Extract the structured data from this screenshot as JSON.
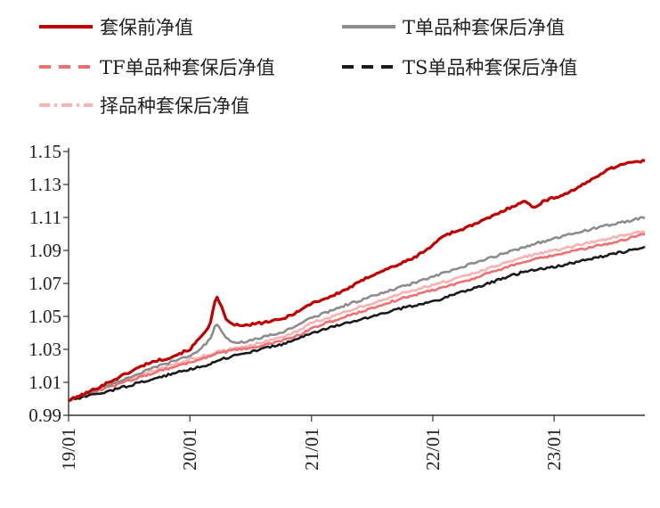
{
  "chart_data": {
    "type": "line",
    "title": "",
    "xlabel": "",
    "ylabel": "",
    "x_ticks": [
      "19/01",
      "20/01",
      "21/01",
      "22/01",
      "23/01"
    ],
    "y_ticks": [
      "0.99",
      "1.01",
      "1.03",
      "1.05",
      "1.07",
      "1.09",
      "1.11",
      "1.13",
      "1.15"
    ],
    "ylim": [
      0.99,
      1.15
    ],
    "xlim": [
      "2019-01",
      "2023-10"
    ],
    "grid": false,
    "legend_position": "top",
    "series": [
      {
        "name": "套保前净值",
        "color": "#c00000",
        "dash": "solid",
        "points": [
          [
            "2019-01",
            0.999
          ],
          [
            "2019-03",
            1.004
          ],
          [
            "2019-05",
            1.01
          ],
          [
            "2019-07",
            1.016
          ],
          [
            "2019-09",
            1.022
          ],
          [
            "2019-11",
            1.025
          ],
          [
            "2020-01",
            1.03
          ],
          [
            "2020-02",
            1.037
          ],
          [
            "2020-03",
            1.045
          ],
          [
            "2020-03-20",
            1.062
          ],
          [
            "2020-04",
            1.058
          ],
          [
            "2020-04-20",
            1.047
          ],
          [
            "2020-06",
            1.044
          ],
          [
            "2020-08",
            1.046
          ],
          [
            "2020-10",
            1.048
          ],
          [
            "2020-12",
            1.054
          ],
          [
            "2021-01",
            1.058
          ],
          [
            "2021-03",
            1.062
          ],
          [
            "2021-05",
            1.068
          ],
          [
            "2021-07",
            1.075
          ],
          [
            "2021-09",
            1.08
          ],
          [
            "2021-11",
            1.085
          ],
          [
            "2022-01",
            1.093
          ],
          [
            "2022-02",
            1.099
          ],
          [
            "2022-04",
            1.103
          ],
          [
            "2022-06",
            1.108
          ],
          [
            "2022-08",
            1.114
          ],
          [
            "2022-10",
            1.12
          ],
          [
            "2022-11",
            1.116
          ],
          [
            "2022-12",
            1.12
          ],
          [
            "2023-02",
            1.124
          ],
          [
            "2023-04",
            1.13
          ],
          [
            "2023-06",
            1.138
          ],
          [
            "2023-08",
            1.143
          ],
          [
            "2023-10",
            1.144
          ]
        ]
      },
      {
        "name": "T单品种套保后净值",
        "color": "#8c8c8c",
        "dash": "solid",
        "points": [
          [
            "2019-01",
            0.999
          ],
          [
            "2019-04",
            1.006
          ],
          [
            "2019-07",
            1.013
          ],
          [
            "2019-10",
            1.02
          ],
          [
            "2020-01",
            1.026
          ],
          [
            "2020-02",
            1.03
          ],
          [
            "2020-03",
            1.036
          ],
          [
            "2020-03-20",
            1.046
          ],
          [
            "2020-04",
            1.042
          ],
          [
            "2020-04-20",
            1.036
          ],
          [
            "2020-06",
            1.034
          ],
          [
            "2020-08",
            1.037
          ],
          [
            "2020-10",
            1.04
          ],
          [
            "2020-12",
            1.046
          ],
          [
            "2021-01",
            1.049
          ],
          [
            "2021-04",
            1.056
          ],
          [
            "2021-07",
            1.062
          ],
          [
            "2021-10",
            1.068
          ],
          [
            "2022-01",
            1.074
          ],
          [
            "2022-04",
            1.08
          ],
          [
            "2022-07",
            1.086
          ],
          [
            "2022-10",
            1.092
          ],
          [
            "2022-11",
            1.094
          ],
          [
            "2023-01",
            1.097
          ],
          [
            "2023-04",
            1.102
          ],
          [
            "2023-07",
            1.106
          ],
          [
            "2023-10",
            1.11
          ]
        ]
      },
      {
        "name": "TF单品种套保后净值",
        "color": "#f07070",
        "dash": "dashed",
        "points": [
          [
            "2019-01",
            0.999
          ],
          [
            "2019-04",
            1.005
          ],
          [
            "2019-07",
            1.011
          ],
          [
            "2019-10",
            1.017
          ],
          [
            "2020-01",
            1.022
          ],
          [
            "2020-03",
            1.026
          ],
          [
            "2020-04",
            1.028
          ],
          [
            "2020-06",
            1.03
          ],
          [
            "2020-08",
            1.032
          ],
          [
            "2020-10",
            1.035
          ],
          [
            "2020-12",
            1.039
          ],
          [
            "2021-01",
            1.043
          ],
          [
            "2021-04",
            1.049
          ],
          [
            "2021-07",
            1.055
          ],
          [
            "2021-10",
            1.061
          ],
          [
            "2022-01",
            1.066
          ],
          [
            "2022-04",
            1.071
          ],
          [
            "2022-07",
            1.077
          ],
          [
            "2022-10",
            1.083
          ],
          [
            "2023-01",
            1.087
          ],
          [
            "2023-04",
            1.091
          ],
          [
            "2023-07",
            1.095
          ],
          [
            "2023-10",
            1.1
          ]
        ]
      },
      {
        "name": "TS单品种套保后净值",
        "color": "#1a1a1a",
        "dash": "dashed",
        "points": [
          [
            "2019-01",
            0.999
          ],
          [
            "2019-04",
            1.003
          ],
          [
            "2019-07",
            1.008
          ],
          [
            "2019-10",
            1.013
          ],
          [
            "2020-01",
            1.018
          ],
          [
            "2020-03",
            1.021
          ],
          [
            "2020-04",
            1.024
          ],
          [
            "2020-06",
            1.027
          ],
          [
            "2020-08",
            1.03
          ],
          [
            "2020-10",
            1.033
          ],
          [
            "2020-12",
            1.037
          ],
          [
            "2021-01",
            1.04
          ],
          [
            "2021-04",
            1.045
          ],
          [
            "2021-07",
            1.05
          ],
          [
            "2021-10",
            1.055
          ],
          [
            "2022-01",
            1.059
          ],
          [
            "2022-04",
            1.065
          ],
          [
            "2022-07",
            1.071
          ],
          [
            "2022-10",
            1.077
          ],
          [
            "2023-01",
            1.08
          ],
          [
            "2023-04",
            1.084
          ],
          [
            "2023-07",
            1.088
          ],
          [
            "2023-10",
            1.092
          ]
        ]
      },
      {
        "name": "择品种套保后净值",
        "color": "#f7b3b3",
        "dash": "dashdot",
        "points": [
          [
            "2019-01",
            0.999
          ],
          [
            "2019-04",
            1.006
          ],
          [
            "2019-07",
            1.012
          ],
          [
            "2019-10",
            1.018
          ],
          [
            "2020-01",
            1.024
          ],
          [
            "2020-03",
            1.027
          ],
          [
            "2020-04",
            1.029
          ],
          [
            "2020-06",
            1.031
          ],
          [
            "2020-08",
            1.034
          ],
          [
            "2020-10",
            1.037
          ],
          [
            "2020-12",
            1.042
          ],
          [
            "2021-01",
            1.046
          ],
          [
            "2021-04",
            1.052
          ],
          [
            "2021-07",
            1.058
          ],
          [
            "2021-10",
            1.064
          ],
          [
            "2022-01",
            1.069
          ],
          [
            "2022-04",
            1.074
          ],
          [
            "2022-07",
            1.08
          ],
          [
            "2022-10",
            1.086
          ],
          [
            "2023-01",
            1.09
          ],
          [
            "2023-04",
            1.094
          ],
          [
            "2023-07",
            1.098
          ],
          [
            "2023-10",
            1.102
          ]
        ]
      }
    ]
  }
}
